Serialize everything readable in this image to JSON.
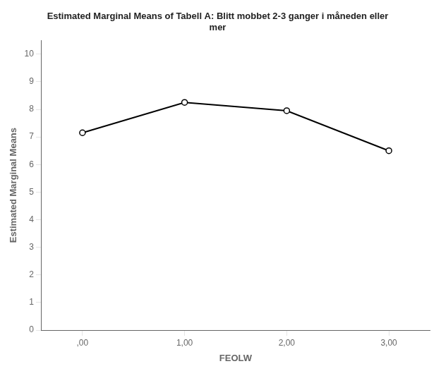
{
  "chart_data": {
    "type": "line",
    "title": "Estimated Marginal Means of Tabell A: Blitt mobbet 2-3 ganger i måneden eller\nmer",
    "xlabel": "FEOLW",
    "ylabel": "Estimated Marginal Means",
    "x": [
      0,
      1,
      2,
      3
    ],
    "values": [
      7.15,
      8.25,
      7.95,
      6.5
    ],
    "color": "#000000",
    "marker": "circle",
    "xlim": [
      -0.4,
      3.4
    ],
    "xticks": [
      {
        "value": 0,
        "label": ",00"
      },
      {
        "value": 1,
        "label": "1,00"
      },
      {
        "value": 2,
        "label": "2,00"
      },
      {
        "value": 3,
        "label": "3,00"
      }
    ],
    "ylim": [
      0,
      10.5
    ],
    "yticks": [
      0,
      1,
      2,
      3,
      4,
      5,
      6,
      7,
      8,
      9,
      10
    ],
    "grid": false
  }
}
